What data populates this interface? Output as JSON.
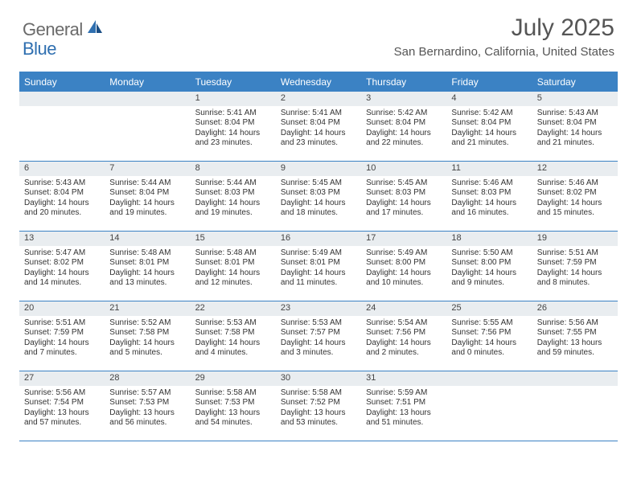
{
  "logo": {
    "general": "General",
    "blue": "Blue"
  },
  "title": "July 2025",
  "location": "San Bernardino, California, United States",
  "weekdays": [
    "Sunday",
    "Monday",
    "Tuesday",
    "Wednesday",
    "Thursday",
    "Friday",
    "Saturday"
  ],
  "colors": {
    "header_bar": "#3b82c4",
    "daynum_bg": "#e9edf0",
    "text": "#333333",
    "title_text": "#555555",
    "logo_gray": "#6a6a6a",
    "logo_blue": "#2f6fb0"
  },
  "weeks": [
    [
      {
        "n": "",
        "sr": "",
        "ss": "",
        "dl": ""
      },
      {
        "n": "",
        "sr": "",
        "ss": "",
        "dl": ""
      },
      {
        "n": "1",
        "sr": "Sunrise: 5:41 AM",
        "ss": "Sunset: 8:04 PM",
        "dl": "Daylight: 14 hours and 23 minutes."
      },
      {
        "n": "2",
        "sr": "Sunrise: 5:41 AM",
        "ss": "Sunset: 8:04 PM",
        "dl": "Daylight: 14 hours and 23 minutes."
      },
      {
        "n": "3",
        "sr": "Sunrise: 5:42 AM",
        "ss": "Sunset: 8:04 PM",
        "dl": "Daylight: 14 hours and 22 minutes."
      },
      {
        "n": "4",
        "sr": "Sunrise: 5:42 AM",
        "ss": "Sunset: 8:04 PM",
        "dl": "Daylight: 14 hours and 21 minutes."
      },
      {
        "n": "5",
        "sr": "Sunrise: 5:43 AM",
        "ss": "Sunset: 8:04 PM",
        "dl": "Daylight: 14 hours and 21 minutes."
      }
    ],
    [
      {
        "n": "6",
        "sr": "Sunrise: 5:43 AM",
        "ss": "Sunset: 8:04 PM",
        "dl": "Daylight: 14 hours and 20 minutes."
      },
      {
        "n": "7",
        "sr": "Sunrise: 5:44 AM",
        "ss": "Sunset: 8:04 PM",
        "dl": "Daylight: 14 hours and 19 minutes."
      },
      {
        "n": "8",
        "sr": "Sunrise: 5:44 AM",
        "ss": "Sunset: 8:03 PM",
        "dl": "Daylight: 14 hours and 19 minutes."
      },
      {
        "n": "9",
        "sr": "Sunrise: 5:45 AM",
        "ss": "Sunset: 8:03 PM",
        "dl": "Daylight: 14 hours and 18 minutes."
      },
      {
        "n": "10",
        "sr": "Sunrise: 5:45 AM",
        "ss": "Sunset: 8:03 PM",
        "dl": "Daylight: 14 hours and 17 minutes."
      },
      {
        "n": "11",
        "sr": "Sunrise: 5:46 AM",
        "ss": "Sunset: 8:03 PM",
        "dl": "Daylight: 14 hours and 16 minutes."
      },
      {
        "n": "12",
        "sr": "Sunrise: 5:46 AM",
        "ss": "Sunset: 8:02 PM",
        "dl": "Daylight: 14 hours and 15 minutes."
      }
    ],
    [
      {
        "n": "13",
        "sr": "Sunrise: 5:47 AM",
        "ss": "Sunset: 8:02 PM",
        "dl": "Daylight: 14 hours and 14 minutes."
      },
      {
        "n": "14",
        "sr": "Sunrise: 5:48 AM",
        "ss": "Sunset: 8:01 PM",
        "dl": "Daylight: 14 hours and 13 minutes."
      },
      {
        "n": "15",
        "sr": "Sunrise: 5:48 AM",
        "ss": "Sunset: 8:01 PM",
        "dl": "Daylight: 14 hours and 12 minutes."
      },
      {
        "n": "16",
        "sr": "Sunrise: 5:49 AM",
        "ss": "Sunset: 8:01 PM",
        "dl": "Daylight: 14 hours and 11 minutes."
      },
      {
        "n": "17",
        "sr": "Sunrise: 5:49 AM",
        "ss": "Sunset: 8:00 PM",
        "dl": "Daylight: 14 hours and 10 minutes."
      },
      {
        "n": "18",
        "sr": "Sunrise: 5:50 AM",
        "ss": "Sunset: 8:00 PM",
        "dl": "Daylight: 14 hours and 9 minutes."
      },
      {
        "n": "19",
        "sr": "Sunrise: 5:51 AM",
        "ss": "Sunset: 7:59 PM",
        "dl": "Daylight: 14 hours and 8 minutes."
      }
    ],
    [
      {
        "n": "20",
        "sr": "Sunrise: 5:51 AM",
        "ss": "Sunset: 7:59 PM",
        "dl": "Daylight: 14 hours and 7 minutes."
      },
      {
        "n": "21",
        "sr": "Sunrise: 5:52 AM",
        "ss": "Sunset: 7:58 PM",
        "dl": "Daylight: 14 hours and 5 minutes."
      },
      {
        "n": "22",
        "sr": "Sunrise: 5:53 AM",
        "ss": "Sunset: 7:58 PM",
        "dl": "Daylight: 14 hours and 4 minutes."
      },
      {
        "n": "23",
        "sr": "Sunrise: 5:53 AM",
        "ss": "Sunset: 7:57 PM",
        "dl": "Daylight: 14 hours and 3 minutes."
      },
      {
        "n": "24",
        "sr": "Sunrise: 5:54 AM",
        "ss": "Sunset: 7:56 PM",
        "dl": "Daylight: 14 hours and 2 minutes."
      },
      {
        "n": "25",
        "sr": "Sunrise: 5:55 AM",
        "ss": "Sunset: 7:56 PM",
        "dl": "Daylight: 14 hours and 0 minutes."
      },
      {
        "n": "26",
        "sr": "Sunrise: 5:56 AM",
        "ss": "Sunset: 7:55 PM",
        "dl": "Daylight: 13 hours and 59 minutes."
      }
    ],
    [
      {
        "n": "27",
        "sr": "Sunrise: 5:56 AM",
        "ss": "Sunset: 7:54 PM",
        "dl": "Daylight: 13 hours and 57 minutes."
      },
      {
        "n": "28",
        "sr": "Sunrise: 5:57 AM",
        "ss": "Sunset: 7:53 PM",
        "dl": "Daylight: 13 hours and 56 minutes."
      },
      {
        "n": "29",
        "sr": "Sunrise: 5:58 AM",
        "ss": "Sunset: 7:53 PM",
        "dl": "Daylight: 13 hours and 54 minutes."
      },
      {
        "n": "30",
        "sr": "Sunrise: 5:58 AM",
        "ss": "Sunset: 7:52 PM",
        "dl": "Daylight: 13 hours and 53 minutes."
      },
      {
        "n": "31",
        "sr": "Sunrise: 5:59 AM",
        "ss": "Sunset: 7:51 PM",
        "dl": "Daylight: 13 hours and 51 minutes."
      },
      {
        "n": "",
        "sr": "",
        "ss": "",
        "dl": ""
      },
      {
        "n": "",
        "sr": "",
        "ss": "",
        "dl": ""
      }
    ]
  ]
}
